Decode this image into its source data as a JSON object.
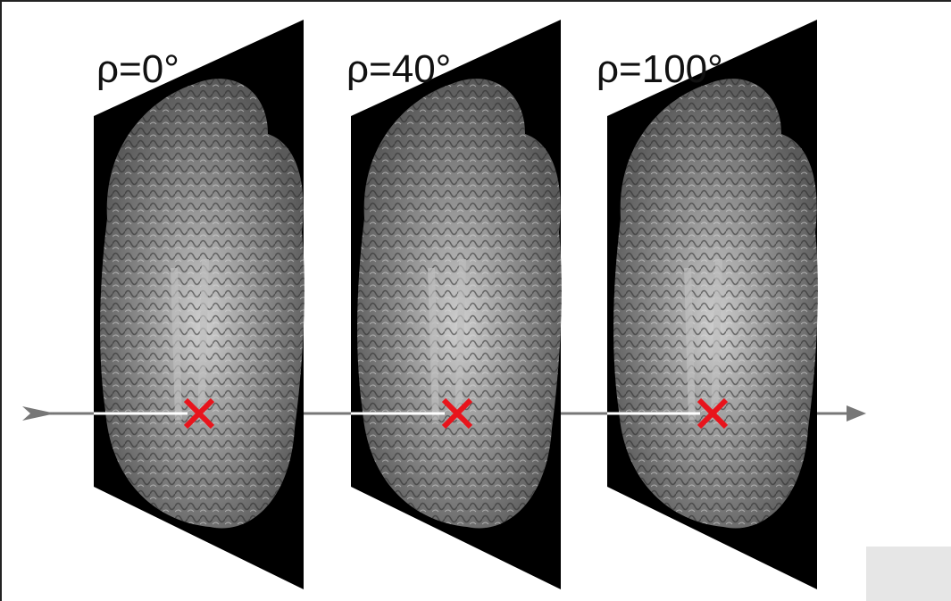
{
  "panels": [
    {
      "label": "ρ=0°"
    },
    {
      "label": "ρ=40°"
    },
    {
      "label": "ρ=100°"
    }
  ]
}
